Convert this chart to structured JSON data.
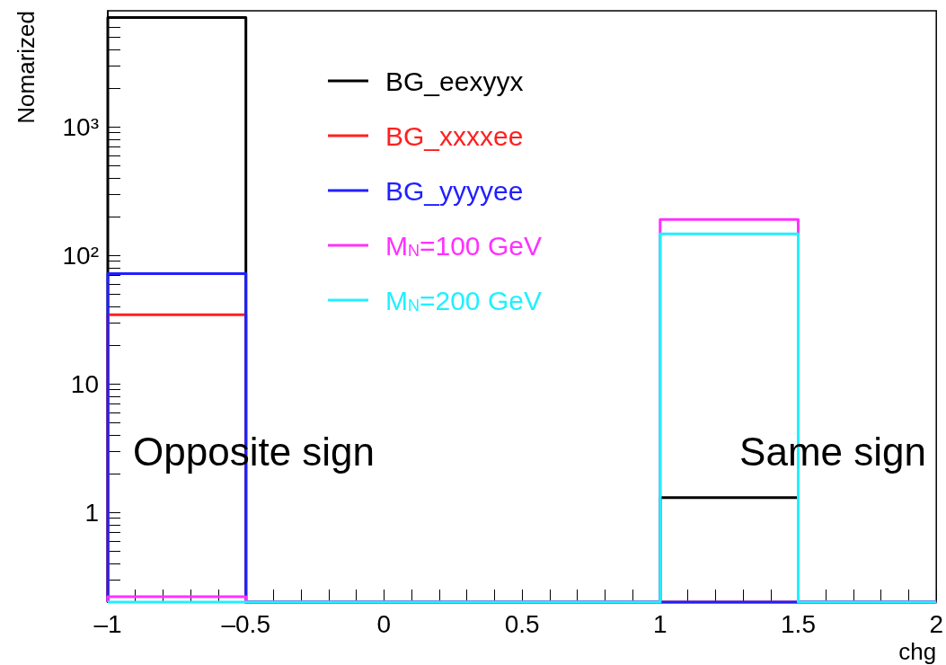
{
  "chart_data": {
    "type": "histogram",
    "xlabel": "chg",
    "ylabel": "Nomarized",
    "bins": [
      -1,
      -0.5,
      0,
      0.5,
      1,
      1.5,
      2
    ],
    "series": [
      {
        "name": "BG_eexyyx",
        "color": "#000000",
        "values": [
          7100,
          null,
          null,
          null,
          1.3,
          null
        ]
      },
      {
        "name": "BG_xxxxee",
        "color": "#ff2020",
        "values": [
          34.5,
          null,
          null,
          null,
          null,
          null
        ]
      },
      {
        "name": "BG_yyyyee",
        "color": "#2020ff",
        "values": [
          72,
          null,
          null,
          null,
          null,
          null
        ]
      },
      {
        "name": "M$_{N}$=100 GeV",
        "color": "#ff30ff",
        "values": [
          0.22,
          null,
          null,
          null,
          190,
          null
        ]
      },
      {
        "name": "M$_{N}$=200 GeV",
        "color": "#20f0ff",
        "values": [
          null,
          null,
          null,
          null,
          147,
          null
        ]
      }
    ],
    "log": "y",
    "xlim": [
      -1,
      2
    ],
    "ylim": [
      0.2,
      8000
    ],
    "xticks": [
      {
        "value": -1,
        "label": "–1"
      },
      {
        "value": -0.9,
        "label": null
      },
      {
        "value": -0.8,
        "label": null
      },
      {
        "value": -0.7,
        "label": null
      },
      {
        "value": -0.6,
        "label": null
      },
      {
        "value": -0.5,
        "label": "–0.5"
      },
      {
        "value": -0.4,
        "label": null
      },
      {
        "value": -0.3,
        "label": null
      },
      {
        "value": -0.2,
        "label": null
      },
      {
        "value": -0.1,
        "label": null
      },
      0,
      {
        "value": 0.1,
        "label": null
      },
      {
        "value": 0.2,
        "label": null
      },
      {
        "value": 0.3,
        "label": null
      },
      {
        "value": 0.4,
        "label": null
      },
      0.5,
      {
        "value": 0.6,
        "label": null
      },
      {
        "value": 0.7,
        "label": null
      },
      {
        "value": 0.8,
        "label": null
      },
      {
        "value": 0.9,
        "label": null
      },
      1,
      {
        "value": 1.1,
        "label": null
      },
      {
        "value": 1.2,
        "label": null
      },
      {
        "value": 1.3,
        "label": null
      },
      {
        "value": 1.4,
        "label": null
      },
      1.5,
      {
        "value": 1.6,
        "label": null
      },
      {
        "value": 1.7,
        "label": null
      },
      {
        "value": 1.8,
        "label": null
      },
      {
        "value": 1.9,
        "label": null
      },
      2
    ],
    "yticks": [
      {
        "value": 0.3,
        "label": null
      },
      {
        "value": 0.4,
        "label": null
      },
      {
        "value": 0.5,
        "label": null
      },
      {
        "value": 0.6,
        "label": null
      },
      {
        "value": 0.7,
        "label": null
      },
      {
        "value": 0.8,
        "label": null
      },
      {
        "value": 0.9,
        "label": null
      },
      1,
      {
        "value": 2,
        "label": null
      },
      {
        "value": 3,
        "label": null
      },
      {
        "value": 4,
        "label": null
      },
      {
        "value": 5,
        "label": null
      },
      {
        "value": 6,
        "label": null
      },
      {
        "value": 7,
        "label": null
      },
      {
        "value": 8,
        "label": null
      },
      {
        "value": 9,
        "label": null
      },
      10,
      {
        "value": 20,
        "label": null
      },
      {
        "value": 30,
        "label": null
      },
      {
        "value": 40,
        "label": null
      },
      {
        "value": 50,
        "label": null
      },
      {
        "value": 60,
        "label": null
      },
      {
        "value": 70,
        "label": null
      },
      {
        "value": 80,
        "label": null
      },
      {
        "value": 90,
        "label": null
      },
      {
        "value": 100,
        "label": "10²"
      },
      {
        "value": 200,
        "label": null
      },
      {
        "value": 300,
        "label": null
      },
      {
        "value": 400,
        "label": null
      },
      {
        "value": 500,
        "label": null
      },
      {
        "value": 600,
        "label": null
      },
      {
        "value": 700,
        "label": null
      },
      {
        "value": 800,
        "label": null
      },
      {
        "value": 900,
        "label": null
      },
      {
        "value": 1000,
        "label": "10³"
      },
      {
        "value": 2000,
        "label": null
      },
      {
        "value": 3000,
        "label": null
      },
      {
        "value": 4000,
        "label": null
      },
      {
        "value": 5000,
        "label": null
      },
      {
        "value": 6000,
        "label": null
      },
      {
        "value": 7000,
        "label": null
      }
    ],
    "legend": "top",
    "grid": false,
    "annotations": [
      "Opposite sign",
      "Same sign"
    ]
  }
}
